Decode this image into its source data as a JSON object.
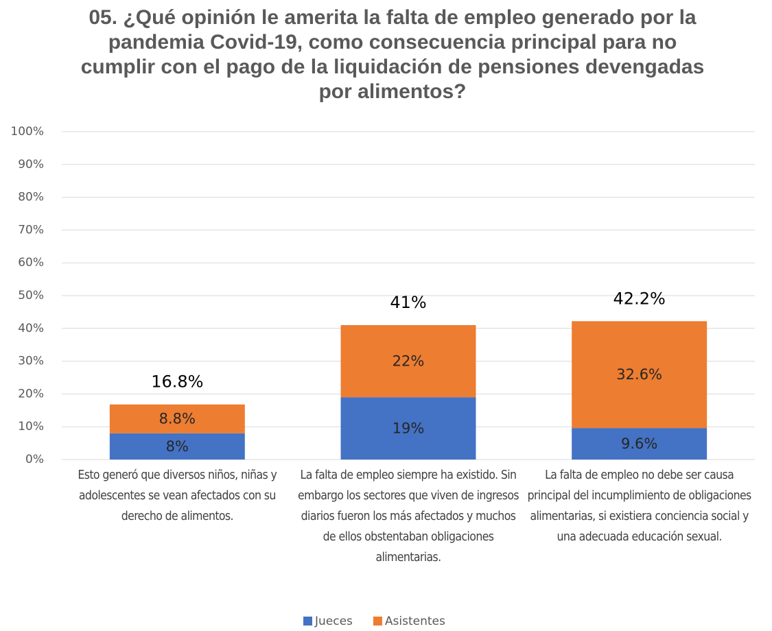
{
  "chart_data": {
    "type": "stacked_bar",
    "title": "05. ¿Qué opinión le amerita la falta de empleo generado por la pandemia Covid-19, como consecuencia principal para no cumplir con el pago de la liquidación de pensiones devengadas por alimentos?",
    "categories": [
      "Esto generó que diversos niños, niñas y adolescentes se vean afectados con su derecho de alimentos.",
      "La falta de empleo siempre ha existido. Sin embargo los sectores que viven de ingresos diarios fueron los más afectados y muchos de ellos obstentaban obligaciones alimentarias.",
      "La falta de empleo no debe ser causa principal del incumplimiento de obligaciones alimentarias, si existiera conciencia social y una adecuada educación sexual."
    ],
    "series": [
      {
        "name": "Jueces",
        "color": "#4472c4",
        "values": [
          8,
          19,
          9.6
        ],
        "value_labels": [
          "8%",
          "19%",
          "9.6%"
        ]
      },
      {
        "name": "Asistentes",
        "color": "#ed7d31",
        "values": [
          8.8,
          22,
          32.6
        ],
        "value_labels": [
          "8.8%",
          "22%",
          "32.6%"
        ]
      }
    ],
    "totals": [
      16.8,
      41,
      42.2
    ],
    "totals_labels": [
      "16.8%",
      "41%",
      "42.2%"
    ],
    "ylim": [
      0,
      100
    ],
    "yticks": [
      {
        "value": 0,
        "label": "0%"
      },
      {
        "value": 10,
        "label": "10%"
      },
      {
        "value": 20,
        "label": "20%"
      },
      {
        "value": 30,
        "label": "30%"
      },
      {
        "value": 40,
        "label": "40%"
      },
      {
        "value": 50,
        "label": "50%"
      },
      {
        "value": 60,
        "label": "60%"
      },
      {
        "value": 70,
        "label": "70%"
      },
      {
        "value": 80,
        "label": "80%"
      },
      {
        "value": 90,
        "label": "90%"
      },
      {
        "value": 100,
        "label": "100%"
      }
    ],
    "grid": true,
    "legend": "bottom"
  }
}
